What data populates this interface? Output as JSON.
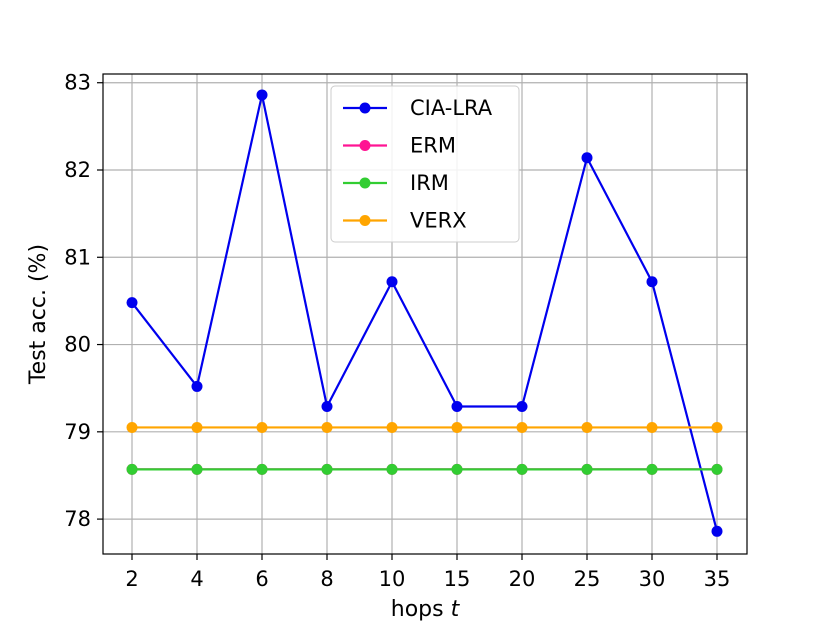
{
  "chart_data": {
    "type": "line",
    "title": "",
    "xlabel": "hops",
    "xlabel_var": "t",
    "ylabel": "Test acc. (%)",
    "categories": [
      "2",
      "4",
      "6",
      "8",
      "10",
      "15",
      "20",
      "25",
      "30",
      "35"
    ],
    "ylim": [
      77.6,
      83.1
    ],
    "yticks": [
      78,
      79,
      80,
      81,
      82,
      83
    ],
    "grid": true,
    "legend_position": "top-center",
    "series": [
      {
        "name": "CIA-LRA",
        "color": "#0000ee",
        "values": [
          80.48,
          79.52,
          82.86,
          79.29,
          80.72,
          79.29,
          79.29,
          82.14,
          80.72,
          77.86
        ]
      },
      {
        "name": "ERM",
        "color": "#ff1493",
        "values": [
          78.57,
          78.57,
          78.57,
          78.57,
          78.57,
          78.57,
          78.57,
          78.57,
          78.57,
          78.57
        ]
      },
      {
        "name": "IRM",
        "color": "#32cd32",
        "values": [
          78.57,
          78.57,
          78.57,
          78.57,
          78.57,
          78.57,
          78.57,
          78.57,
          78.57,
          78.57
        ]
      },
      {
        "name": "VERX",
        "color": "#ffa500",
        "values": [
          79.05,
          79.05,
          79.05,
          79.05,
          79.05,
          79.05,
          79.05,
          79.05,
          79.05,
          79.05
        ]
      }
    ]
  }
}
